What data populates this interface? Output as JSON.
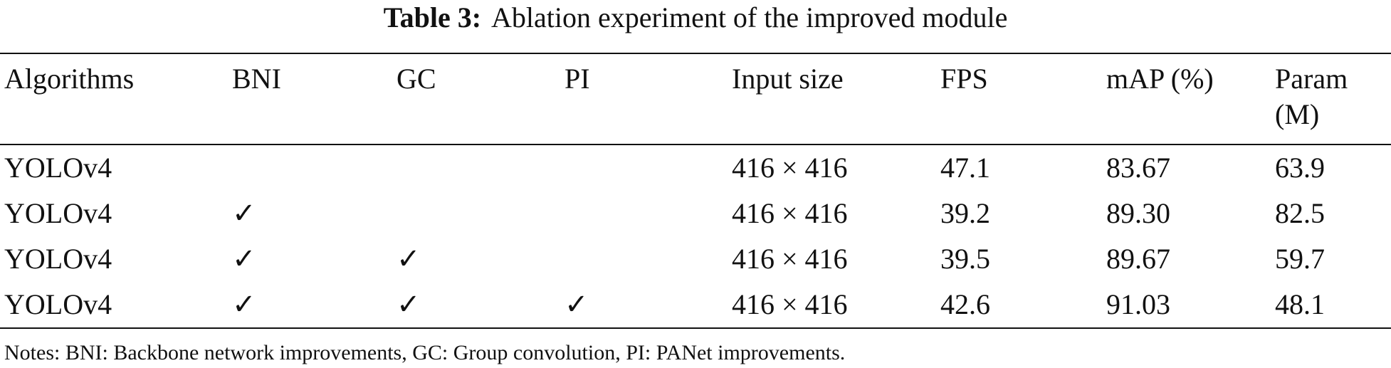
{
  "title": {
    "label": "Table 3:",
    "text": "Ablation experiment of the improved module"
  },
  "table": {
    "header": [
      "Algorithms",
      "BNI",
      "GC",
      "PI",
      "Input size",
      "FPS",
      "mAP (%)",
      "Param (M)"
    ],
    "rows": [
      [
        "YOLOv4",
        null,
        null,
        null,
        "416 × 416",
        "47.1",
        "83.67",
        "63.9"
      ],
      [
        "YOLOv4",
        "✓",
        null,
        null,
        "416 × 416",
        "39.2",
        "89.30",
        "82.5"
      ],
      [
        "YOLOv4",
        "✓",
        "✓",
        null,
        "416 × 416",
        "39.5",
        "89.67",
        "59.7"
      ],
      [
        "YOLOv4",
        "✓",
        "✓",
        "✓",
        "416 × 416",
        "42.6",
        "91.03",
        "48.1"
      ]
    ]
  },
  "notes": "Notes: BNI: Backbone network improvements, GC: Group convolution, PI: PANet improvements."
}
